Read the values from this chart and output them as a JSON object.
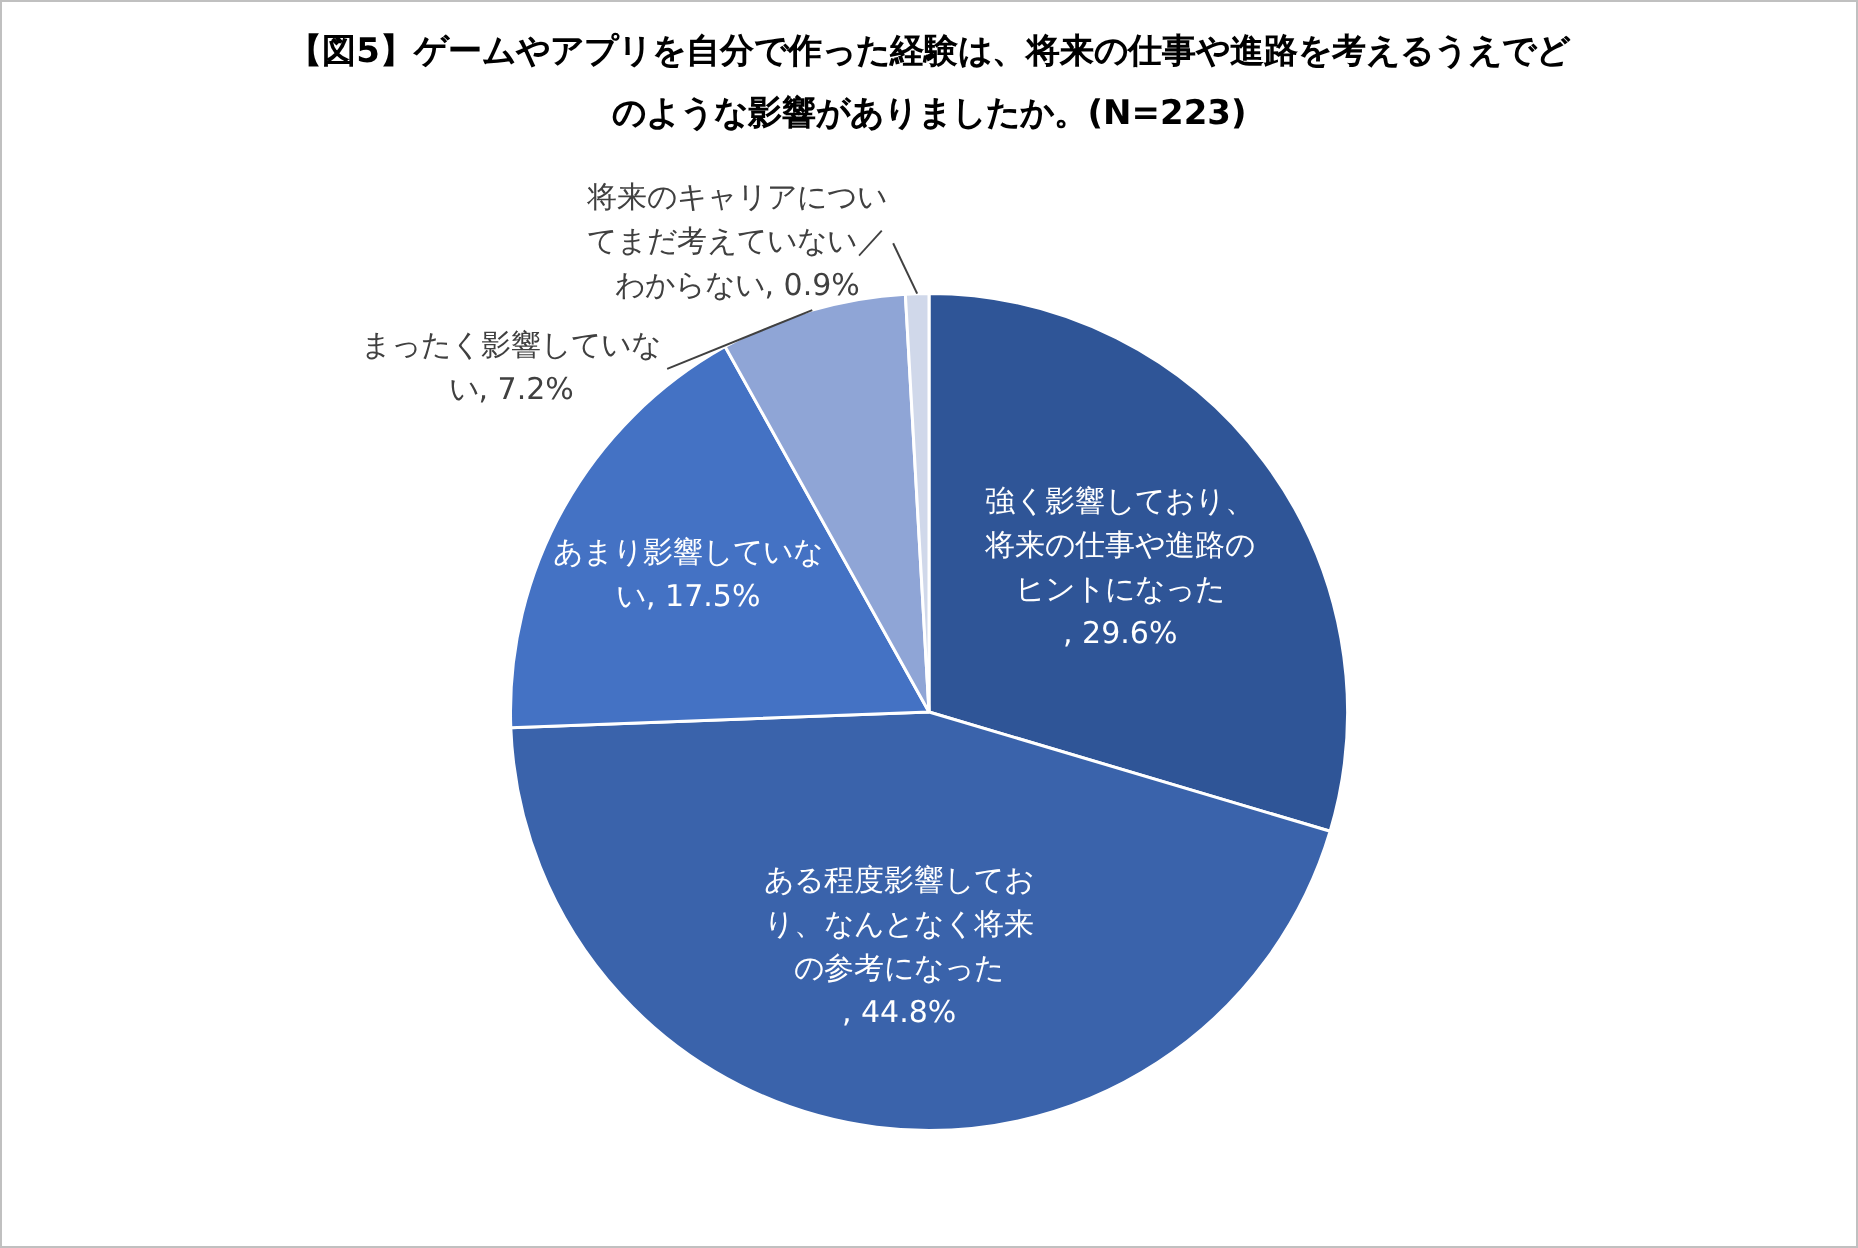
{
  "chart_data": {
    "type": "pie",
    "title": "【図5】ゲームやアプリを自分で作った経験は、将来の仕事や進路を考えるうえでどのような影響がありましたか。(N=223)",
    "categories": [
      "強く影響しており、将来の仕事や進路のヒントになった",
      "ある程度影響しており、なんとなく将来の参考になった",
      "あまり影響していない",
      "まったく影響していない",
      "将来のキャリアについてまだ考えていない／わからない"
    ],
    "value_labels": [
      ", 29.6%",
      ", 44.8%",
      ", 17.5%",
      ", 7.2%",
      ", 0.9%"
    ],
    "values": [
      29.6,
      44.8,
      17.5,
      7.2,
      0.9
    ],
    "colors": [
      "#2f5597",
      "#3a63ab",
      "#4472c4",
      "#8fa5d6",
      "#d0d8ea"
    ],
    "legend": false
  }
}
